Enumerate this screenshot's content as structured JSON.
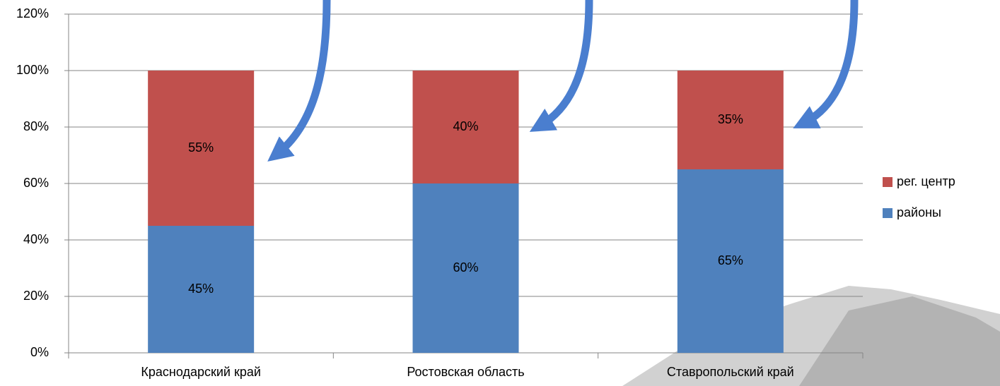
{
  "chart_data": {
    "type": "stacked_bar",
    "categories": [
      "Краснодарский край",
      "Ростовская область",
      "Ставропольский край"
    ],
    "series": [
      {
        "name": "районы",
        "color": "#4f81bd",
        "values": [
          45,
          60,
          65
        ],
        "value_labels": [
          "45%",
          "60%",
          "65%"
        ]
      },
      {
        "name": "рег. центр",
        "color": "#c0504d",
        "values": [
          55,
          40,
          35
        ],
        "value_labels": [
          "55%",
          "40%",
          "35%"
        ]
      }
    ],
    "ylim": [
      0,
      120
    ],
    "yticks": [
      {
        "value": 0,
        "label": "0%"
      },
      {
        "value": 20,
        "label": "20%"
      },
      {
        "value": 40,
        "label": "40%"
      },
      {
        "value": 60,
        "label": "60%"
      },
      {
        "value": 80,
        "label": "80%"
      },
      {
        "value": 100,
        "label": "100%"
      },
      {
        "value": 120,
        "label": "120%"
      }
    ],
    "grid": true,
    "legend": "right"
  }
}
